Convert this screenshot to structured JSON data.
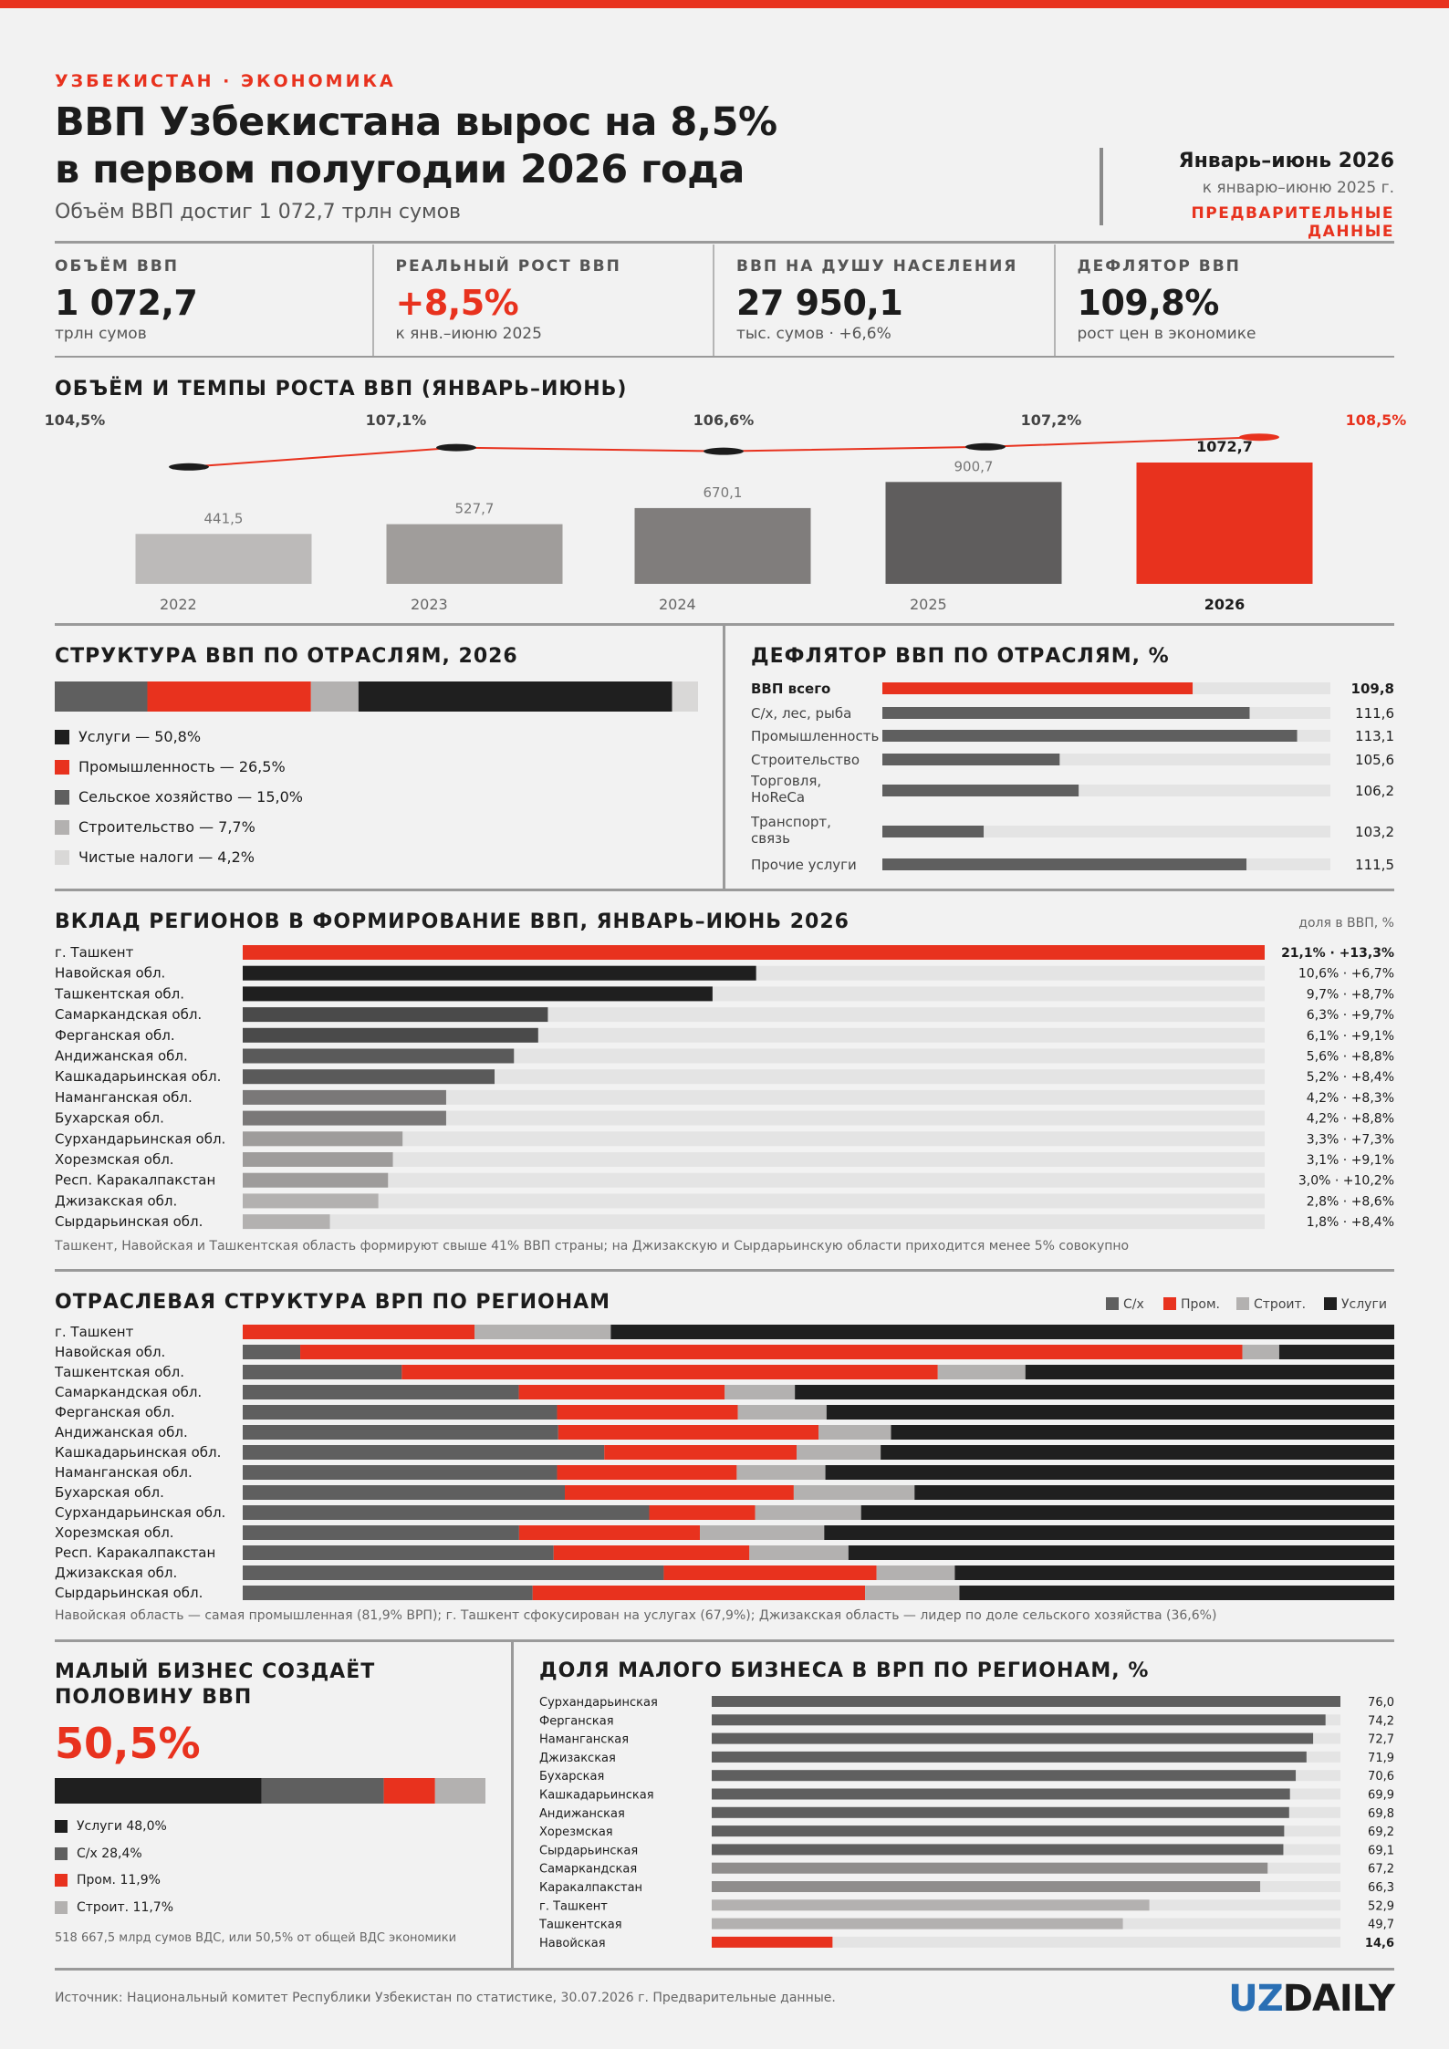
{
  "header": {
    "kicker": "УЗБЕКИСТАН · ЭКОНОМИКА",
    "title_line1": "ВВП Узбекистана вырос на 8,5%",
    "title_line2": "в первом полугодии 2026 года",
    "subtitle": "Объём ВВП достиг 1 072,7 трлн сумов",
    "period_title": "Январь–июнь 2026",
    "period_sub": "к январю–июню 2025 г.",
    "period_note": "ПРЕДВАРИТЕЛЬНЫЕ ДАННЫЕ"
  },
  "kpis": [
    {
      "label": "ОБЪЁМ ВВП",
      "value": "1 072,7",
      "note": "трлн сумов"
    },
    {
      "label": "РЕАЛЬНЫЙ РОСТ ВВП",
      "value": "+8,5%",
      "note": "к янв.–июню 2025"
    },
    {
      "label": "ВВП НА ДУШУ НАСЕЛЕНИЯ",
      "value": "27 950,1",
      "note": "тыс. сумов · +6,6%"
    },
    {
      "label": "ДЕФЛЯТОР ВВП",
      "value": "109,8%",
      "note": "рост цен в экономике"
    }
  ],
  "colors": {
    "red": "#e8321e",
    "dark": "#1f1f1f",
    "grey": "#5f5f5f",
    "lightgrey": "#b3b1b0",
    "palest": "#d9d8d7",
    "track": "#e4e4e4"
  },
  "sections": {
    "volume": "ОБЪЁМ И ТЕМПЫ РОСТА ВВП (ЯНВАРЬ–ИЮНЬ)",
    "structure": "СТРУКТУРА ВВП ПО ОТРАСЛЯМ, 2026",
    "deflator": "ДЕФЛЯТОР ВВП ПО ОТРАСЛЯМ, %",
    "regions": "ВКЛАД РЕГИОНОВ В ФОРМИРОВАНИЕ ВВП, ЯНВАРЬ–ИЮНЬ 2026",
    "regions_unit": "доля в ВВП, %",
    "regions_note": "Ташкент, Навойская и Ташкентская область формируют свыше 41% ВВП страны; на Джизакскую и Сырдарьинскую области приходится менее 5% совокупно",
    "sector_regions": "ОТРАСЛЕВАЯ СТРУКТУРА ВРП ПО РЕГИОНАМ",
    "sector_regions_note": "Навойская область — самая промышленная (81,9% ВРП); г. Ташкент сфокусирован на услугах (67,9%); Джизакская область — лидер по доле сельского хозяйства (36,6%)",
    "small_biz_line1": "МАЛЫЙ БИЗНЕС СОЗДАЁТ",
    "small_biz_line2": "ПОЛОВИНУ ВВП",
    "small_biz_value": "50,5%",
    "small_biz_note": "518 667,5 млрд сумов ВДС, или 50,5% от общей ВДС экономики",
    "small_biz_regions": "ДОЛЯ МАЛОГО БИЗНЕСА В ВРП ПО РЕГИОНАМ, %"
  },
  "footer": {
    "source": "Источник: Национальный комитет Республики Узбекистан по статистике, 30.07.2026 г. Предварительные данные.",
    "logo_uz": "UZ",
    "logo_daily": "DAILY"
  },
  "chart_data": [
    {
      "id": "volume",
      "type": "bar",
      "categories": [
        "2022",
        "2023",
        "2024",
        "2025",
        "2026"
      ],
      "values": [
        441.5,
        527.7,
        670.1,
        900.7,
        1072.7
      ],
      "value_labels": [
        "441,5",
        "527,7",
        "670,1",
        "900,7",
        "1072,7"
      ],
      "series": [
        {
          "values": [
            441.5,
            527.7,
            670.1,
            900.7,
            1072.7
          ]
        },
        {
          "values": [
            104.5,
            107.1,
            106.6,
            107.2,
            108.5
          ],
          "labels": [
            "104,5%",
            "107,1%",
            "106,6%",
            "107,2%",
            "108,5%"
          ]
        }
      ],
      "bar_colors": [
        "#bcbab9",
        "#a09d9b",
        "#807d7c",
        "#5f5d5d",
        "#e8321e"
      ],
      "ylim": [
        0,
        1100
      ],
      "line_ylim": [
        103,
        110
      ]
    },
    {
      "id": "structure",
      "type": "bar",
      "stacked": true,
      "categories": [
        "Сельское хозяйство",
        "Промышленность",
        "Строительство",
        "Услуги",
        "Чистые налоги"
      ],
      "values": [
        15.0,
        26.5,
        7.7,
        50.8,
        4.2
      ],
      "legend": [
        {
          "label": "Услуги — 50,8%",
          "color": "#1f1f1f"
        },
        {
          "label": "Промышленность — 26,5%",
          "color": "#e8321e"
        },
        {
          "label": "Сельское хозяйство — 15,0%",
          "color": "#5f5f5f"
        },
        {
          "label": "Строительство — 7,7%",
          "color": "#b3b1b0"
        },
        {
          "label": "Чистые налоги — 4,2%",
          "color": "#d9d8d7"
        }
      ]
    },
    {
      "id": "deflator",
      "type": "bar",
      "orientation": "horizontal",
      "categories": [
        "ВВП всего",
        "С/х, лес, рыба",
        "Промышленность",
        "Строительство",
        "Торговля, HoReCa",
        "Транспорт, связь",
        "Прочие услуги"
      ],
      "values": [
        109.8,
        111.6,
        113.1,
        105.6,
        106.2,
        103.2,
        111.5
      ],
      "value_labels": [
        "109,8",
        "111,6",
        "113,1",
        "105,6",
        "106,2",
        "103,2",
        "111,5"
      ],
      "xlim": [
        100,
        115
      ]
    },
    {
      "id": "regions",
      "type": "bar",
      "orientation": "horizontal",
      "categories": [
        "г. Ташкент",
        "Навойская обл.",
        "Ташкентская обл.",
        "Самаркандская обл.",
        "Ферганская обл.",
        "Андижанская обл.",
        "Кашкадарьинская обл.",
        "Наманганская обл.",
        "Бухарская обл.",
        "Сурхандарьинская обл.",
        "Хорезмская обл.",
        "Респ. Каракалпакстан",
        "Джизакская обл.",
        "Сырдарьинская обл."
      ],
      "values": [
        21.1,
        10.6,
        9.7,
        6.3,
        6.1,
        5.6,
        5.2,
        4.2,
        4.2,
        3.3,
        3.1,
        3.0,
        2.8,
        1.8
      ],
      "value_labels": [
        "21,1% · +13,3%",
        "10,6% · +6,7%",
        "9,7% · +8,7%",
        "6,3% · +9,7%",
        "6,1% · +9,1%",
        "5,6% · +8,8%",
        "5,2% · +8,4%",
        "4,2% · +8,3%",
        "4,2% · +8,8%",
        "3,3% · +7,3%",
        "3,1% · +9,1%",
        "3,0% · +10,2%",
        "2,8% · +8,6%",
        "1,8% · +8,4%"
      ],
      "xlim": [
        0,
        21.1
      ]
    },
    {
      "id": "sector_regions",
      "type": "bar",
      "orientation": "horizontal",
      "stacked": true,
      "categories": [
        "г. Ташкент",
        "Навойская обл.",
        "Ташкентская обл.",
        "Самаркандская обл.",
        "Ферганская обл.",
        "Андижанская обл.",
        "Кашкадарьинская обл.",
        "Наманганская обл.",
        "Бухарская обл.",
        "Сурхандарьинская обл.",
        "Хорезмская обл.",
        "Респ. Каракалпакстан",
        "Джизакская обл.",
        "Сырдарьинская обл."
      ],
      "series": [
        {
          "name": "С/х",
          "color": "#5f5f5f",
          "values": [
            0.0,
            5.0,
            13.8,
            24.0,
            27.3,
            27.4,
            31.4,
            27.3,
            28.0,
            35.3,
            24.0,
            27.0,
            36.6,
            25.2
          ]
        },
        {
          "name": "Пром.",
          "color": "#e8321e",
          "values": [
            20.1,
            81.9,
            46.5,
            17.9,
            15.7,
            22.6,
            16.7,
            15.6,
            19.9,
            9.2,
            15.7,
            17.0,
            18.5,
            28.9
          ]
        },
        {
          "name": "Строит.",
          "color": "#b3b1b0",
          "values": [
            11.8,
            3.2,
            7.6,
            6.1,
            7.7,
            6.3,
            7.3,
            7.7,
            10.5,
            9.2,
            10.8,
            8.6,
            6.8,
            8.2
          ]
        },
        {
          "name": "Услуги",
          "color": "#1f1f1f",
          "values": [
            67.9,
            10.0,
            32.0,
            52.1,
            49.3,
            43.7,
            44.6,
            49.4,
            41.7,
            46.3,
            49.5,
            47.4,
            38.2,
            37.8
          ]
        }
      ]
    },
    {
      "id": "small_biz",
      "type": "bar",
      "stacked": true,
      "categories": [
        "Услуги",
        "С/х",
        "Пром.",
        "Строит."
      ],
      "values": [
        48.0,
        28.4,
        11.9,
        11.7
      ],
      "legend": [
        {
          "label": "Услуги 48,0%",
          "color": "#1f1f1f"
        },
        {
          "label": "С/х 28,4%",
          "color": "#5f5f5f"
        },
        {
          "label": "Пром. 11,9%",
          "color": "#e8321e"
        },
        {
          "label": "Строит. 11,7%",
          "color": "#b3b1b0"
        }
      ]
    },
    {
      "id": "small_biz_regions",
      "type": "bar",
      "orientation": "horizontal",
      "categories": [
        "Сурхандарьинская",
        "Ферганская",
        "Наманганская",
        "Джизакская",
        "Бухарская",
        "Кашкадарьинская",
        "Андижанская",
        "Хорезмская",
        "Сырдарьинская",
        "Самаркандская",
        "Каракалпакстан",
        "г. Ташкент",
        "Ташкентская",
        "Навойская"
      ],
      "values": [
        76.0,
        74.2,
        72.7,
        71.9,
        70.6,
        69.9,
        69.8,
        69.2,
        69.1,
        67.2,
        66.3,
        52.9,
        49.7,
        14.6
      ],
      "value_labels": [
        "76,0",
        "74,2",
        "72,7",
        "71,9",
        "70,6",
        "69,9",
        "69,8",
        "69,2",
        "69,1",
        "67,2",
        "66,3",
        "52,9",
        "49,7",
        "14,6"
      ],
      "xlim": [
        0,
        76
      ]
    }
  ]
}
